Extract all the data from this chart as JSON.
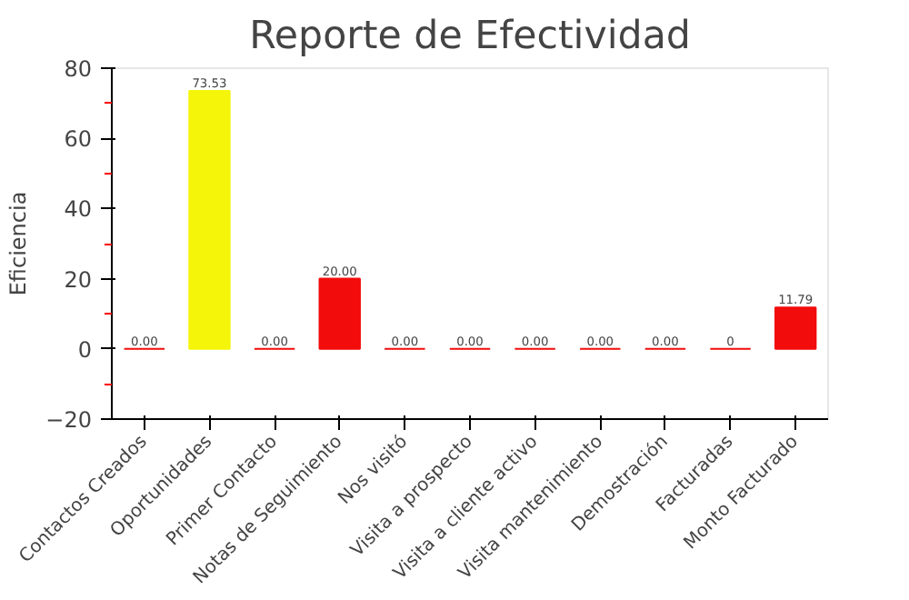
{
  "chart_data": {
    "type": "bar",
    "title": "Reporte de Efectividad",
    "ylabel": "Eficiencia",
    "categories": [
      "Contactos Creados",
      "Oportunidades",
      "Primer Contacto",
      "Notas de Seguimiento",
      "Nos visitó",
      "Visita a prospecto",
      "Visita a cliente activo",
      "Visita mantenimiento",
      "Demostración",
      "Facturadas",
      "Monto Facturado"
    ],
    "values": [
      0,
      73.53,
      0,
      20,
      0,
      0,
      0,
      0,
      0,
      0,
      11.79
    ],
    "colors": [
      "#f20c0c",
      "#f5f50a",
      "#f20c0c",
      "#f20c0c",
      "#f20c0c",
      "#f20c0c",
      "#f20c0c",
      "#f20c0c",
      "#f20c0c",
      "#f20c0c",
      "#f20c0c"
    ],
    "value_labels": [
      "0.00",
      "73.53",
      "0.00",
      "20.00",
      "0.00",
      "0.00",
      "0.00",
      "0.00",
      "0.00",
      "0",
      "11.79"
    ],
    "ylim": [
      -20,
      80
    ],
    "yticks": [
      -20,
      0,
      20,
      40,
      60,
      80
    ],
    "grid": false
  }
}
